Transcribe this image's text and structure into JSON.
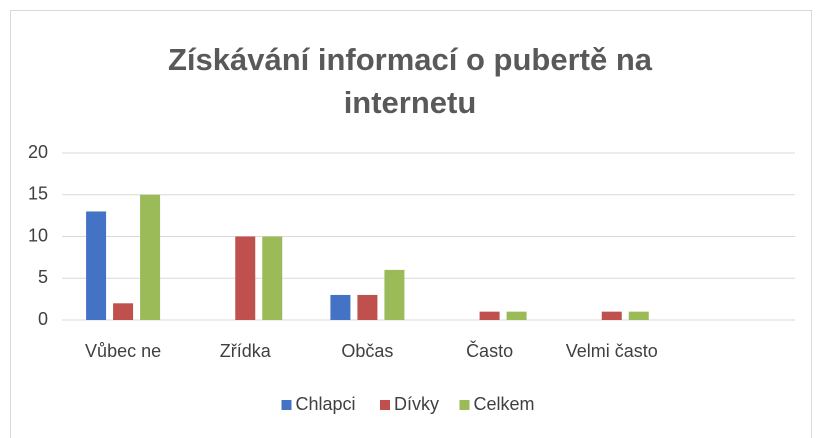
{
  "chart_data": {
    "type": "bar",
    "title": "Získávání informací o pubertě na internetu",
    "categories": [
      "Vůbec ne",
      "Zřídka",
      "Občas",
      "Často",
      "Velmi často",
      null
    ],
    "series": [
      {
        "name": "Chlapci",
        "color": "#4472c4",
        "values": [
          13,
          0,
          3,
          0,
          0,
          null
        ]
      },
      {
        "name": "Dívky",
        "color": "#c0504d",
        "values": [
          2,
          10,
          3,
          1,
          1,
          null
        ]
      },
      {
        "name": "Celkem",
        "color": "#9bbb59",
        "values": [
          15,
          10,
          6,
          1,
          1,
          null
        ]
      }
    ],
    "ylim": [
      0,
      20
    ],
    "yticks": [
      0,
      5,
      10,
      15,
      20
    ],
    "grid": true,
    "legend": "bottom"
  }
}
